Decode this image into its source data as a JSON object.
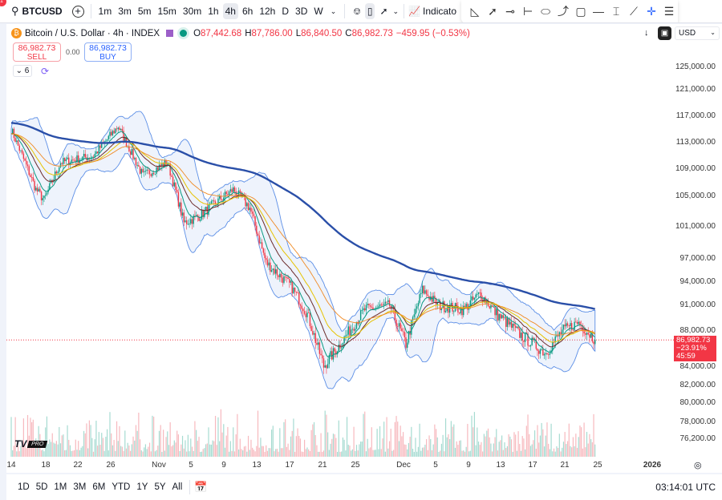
{
  "toolbar": {
    "symbol": "BTCUSD",
    "notification_count": "1",
    "intervals": [
      "1m",
      "3m",
      "5m",
      "15m",
      "30m",
      "1h",
      "4h",
      "6h",
      "12h",
      "D",
      "3D",
      "W"
    ],
    "active_interval": "4h",
    "indicators_label": "Indicato"
  },
  "drawing_tools": [
    "triangle-icon",
    "trend-arrow-icon",
    "horizontal-ray-icon",
    "date-range-icon",
    "ellipse-icon",
    "curve-icon",
    "rectangle-icon",
    "horizontal-line-icon",
    "vertical-measure-icon",
    "trendline-icon",
    "crosshair-icon",
    "menu-icon"
  ],
  "legend": {
    "title": "Bitcoin / U.S. Dollar · 4h · INDEX",
    "open_label": "O",
    "open": "87,442.68",
    "high_label": "H",
    "high": "87,786.00",
    "low_label": "L",
    "low": "86,840.50",
    "close_label": "C",
    "close": "86,982.73",
    "change": "−459.95 (−0.53%)",
    "indicator_count": "6"
  },
  "trade": {
    "sell_price": "86,982.73",
    "sell_label": "SELL",
    "spread": "0.00",
    "buy_price": "86,982.73",
    "buy_label": "BUY"
  },
  "currency": "USD",
  "price_axis": [
    "125,000.00",
    "121,000.00",
    "117,000.00",
    "113,000.00",
    "109,000.00",
    "105,000.00",
    "101,000.00",
    "97,000.00",
    "94,000.00",
    "91,000.00",
    "88,000.00",
    "84,000.00",
    "82,000.00",
    "80,000.00",
    "78,000.00",
    "76,200.00"
  ],
  "last_price": {
    "price": "86,982.73",
    "change": "−23.91%",
    "countdown": "45:59"
  },
  "time_axis": [
    "14",
    "18",
    "22",
    "26",
    "Nov",
    "5",
    "9",
    "13",
    "17",
    "21",
    "25",
    "Dec",
    "5",
    "9",
    "13",
    "17",
    "21",
    "25",
    "2026"
  ],
  "range_buttons": [
    "1D",
    "5D",
    "1M",
    "3M",
    "6M",
    "YTD",
    "1Y",
    "5Y",
    "All"
  ],
  "clock": "03:14:01 UTC",
  "logo_text": "PRO",
  "colors": {
    "up": "#089981",
    "down": "#f23645",
    "ma_long": "#2a4fa8",
    "band": "#5b8ee6",
    "accent": "#2962ff"
  },
  "chart_data": {
    "type": "candlestick",
    "interval": "4h",
    "approx_close_path": [
      [
        "Oct 14",
        115000
      ],
      [
        "Oct 17",
        106000
      ],
      [
        "Oct 18",
        104500
      ],
      [
        "Oct 20",
        110000
      ],
      [
        "Oct 24",
        111000
      ],
      [
        "Oct 27",
        115500
      ],
      [
        "Oct 30",
        108000
      ],
      [
        "Nov 2",
        110000
      ],
      [
        "Nov 4",
        101500
      ],
      [
        "Nov 6",
        102500
      ],
      [
        "Nov 10",
        106000
      ],
      [
        "Nov 12",
        103500
      ],
      [
        "Nov 14",
        96500
      ],
      [
        "Nov 17",
        93500
      ],
      [
        "Nov 19",
        90000
      ],
      [
        "Nov 21",
        84000
      ],
      [
        "Nov 23",
        86500
      ],
      [
        "Nov 26",
        90500
      ],
      [
        "Nov 29",
        91000
      ],
      [
        "Dec 1",
        86500
      ],
      [
        "Dec 3",
        93000
      ],
      [
        "Dec 5",
        91000
      ],
      [
        "Dec 8",
        90500
      ],
      [
        "Dec 10",
        92500
      ],
      [
        "Dec 12",
        90000
      ],
      [
        "Dec 15",
        87500
      ],
      [
        "Dec 18",
        85500
      ],
      [
        "Dec 20",
        88000
      ],
      [
        "Dec 22",
        89000
      ],
      [
        "Dec 24",
        86983
      ]
    ]
  }
}
